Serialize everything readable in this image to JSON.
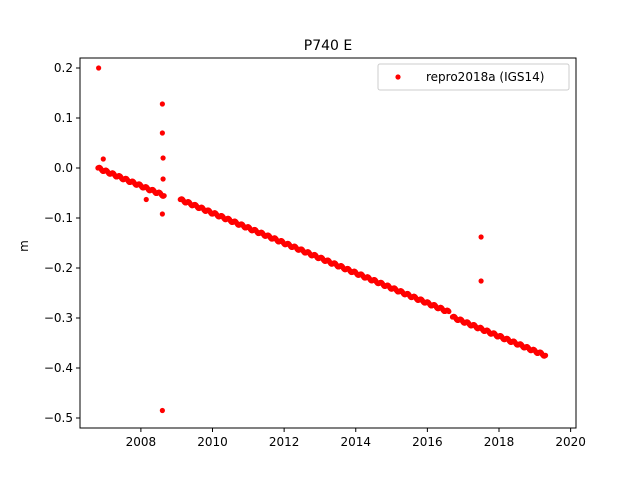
{
  "chart_data": {
    "type": "scatter",
    "title": "P740 E",
    "xlabel": "",
    "ylabel": "m",
    "xlim": [
      2006.3,
      2020.15
    ],
    "ylim": [
      -0.52,
      0.22
    ],
    "xticks": [
      2008,
      2010,
      2012,
      2014,
      2016,
      2018,
      2020
    ],
    "yticks": [
      0.2,
      0.1,
      0.0,
      -0.1,
      -0.2,
      -0.3,
      -0.4,
      -0.5
    ],
    "xtick_labels": [
      "2008",
      "2010",
      "2012",
      "2014",
      "2016",
      "2018",
      "2020"
    ],
    "ytick_labels": [
      "0.2",
      "0.1",
      "0.0",
      "−0.1",
      "−0.2",
      "−0.3",
      "−0.4",
      "−0.5"
    ],
    "grid": false,
    "legend": {
      "position": "top-right",
      "entries": [
        "repro2018a (IGS14)"
      ]
    },
    "color": "#ff0000",
    "series": [
      {
        "name": "repro2018a (IGS14)",
        "trend_segments": [
          {
            "x": [
              2006.8,
              2008.65
            ],
            "y": [
              0.0,
              -0.055
            ]
          },
          {
            "x": [
              2009.1,
              2016.6
            ],
            "y": [
              -0.063,
              -0.288
            ]
          },
          {
            "x": [
              2016.7,
              2019.3
            ],
            "y": [
              -0.298,
              -0.375
            ]
          }
        ],
        "outliers": [
          {
            "x": 2006.82,
            "y": 0.2
          },
          {
            "x": 2006.95,
            "y": 0.018
          },
          {
            "x": 2008.15,
            "y": -0.063
          },
          {
            "x": 2008.6,
            "y": 0.128
          },
          {
            "x": 2008.6,
            "y": 0.07
          },
          {
            "x": 2008.62,
            "y": 0.02
          },
          {
            "x": 2008.62,
            "y": -0.022
          },
          {
            "x": 2008.6,
            "y": -0.092
          },
          {
            "x": 2008.6,
            "y": -0.485
          },
          {
            "x": 2017.5,
            "y": -0.138
          },
          {
            "x": 2017.5,
            "y": -0.226
          }
        ]
      }
    ]
  }
}
